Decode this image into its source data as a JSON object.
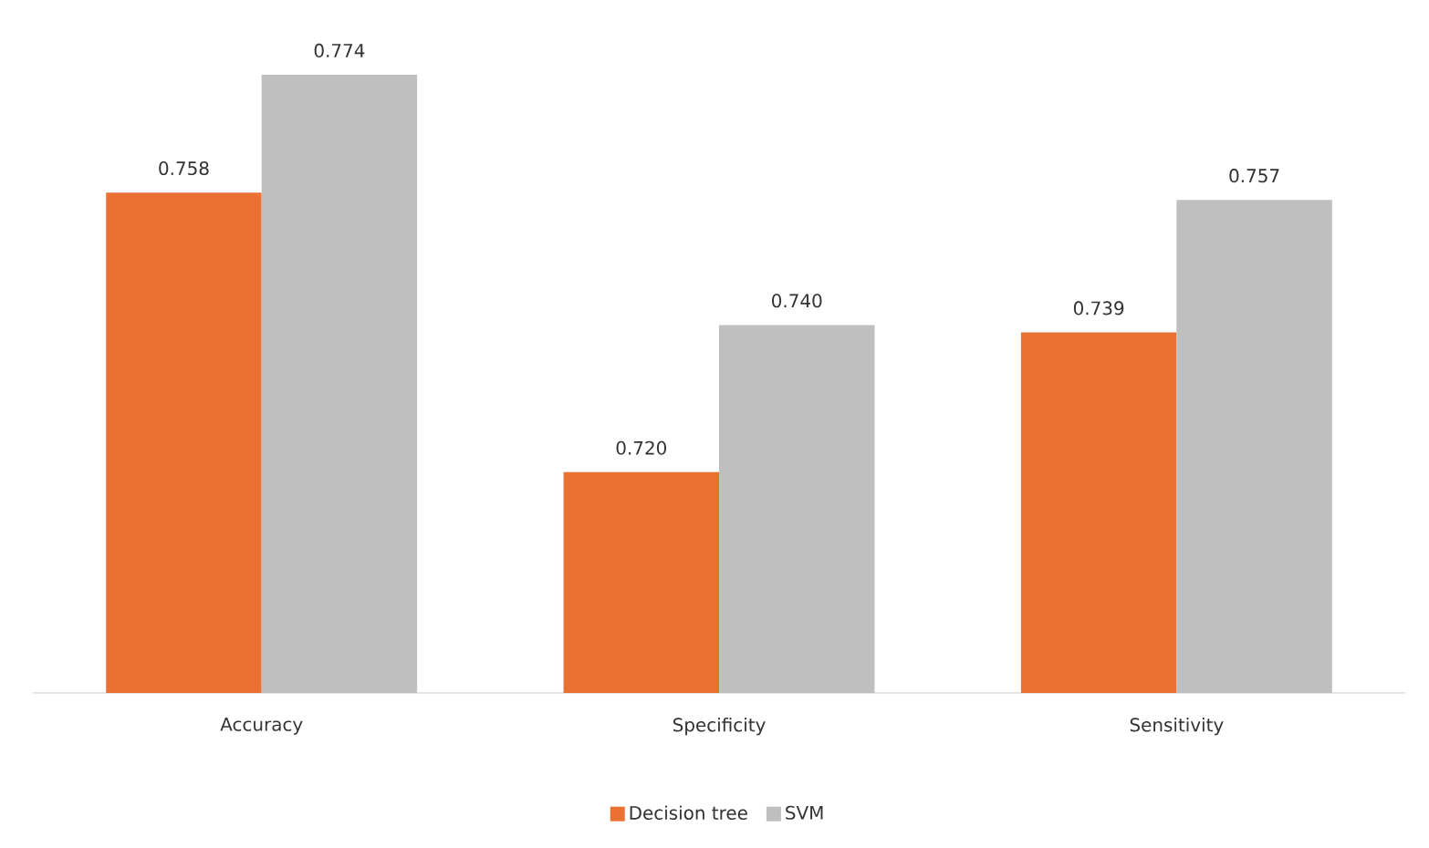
{
  "chart_data": {
    "type": "bar",
    "categories": [
      "Accuracy",
      "Specificity",
      "Sensitivity"
    ],
    "series": [
      {
        "name": "Decision tree",
        "color": "#e97132",
        "values": [
          0.758,
          0.72,
          0.739
        ],
        "value_labels": [
          "0.758",
          "0.720",
          "0.739"
        ]
      },
      {
        "name": "SVM",
        "color": "#bfbfbf",
        "values": [
          0.774,
          0.74,
          0.757
        ],
        "value_labels": [
          "0.774",
          "0.740",
          "0.757"
        ]
      }
    ],
    "ylim": [
      0.69,
      0.774
    ],
    "tick_labels": "x",
    "legend": "bottom",
    "grid": false
  }
}
